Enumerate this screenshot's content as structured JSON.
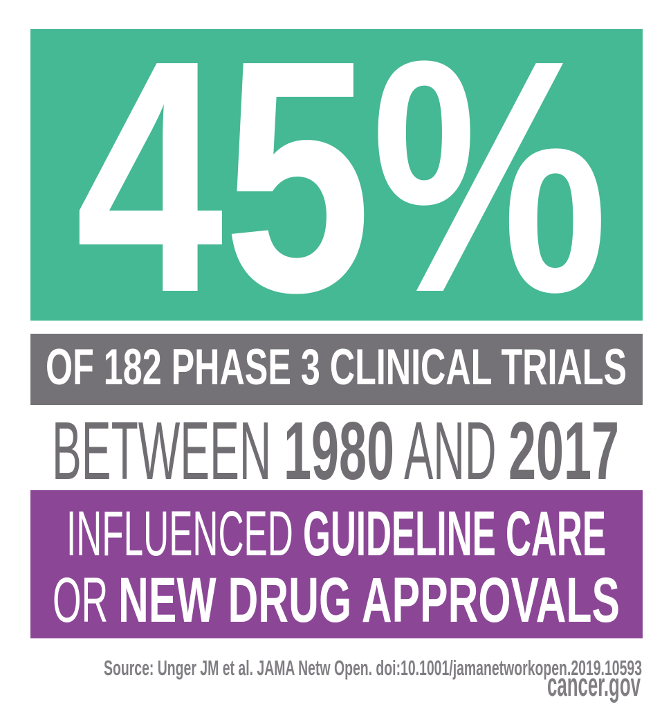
{
  "stat": {
    "value": "45%"
  },
  "qualifier": {
    "label": "OF 182 PHASE 3 CLINICAL TRIALS"
  },
  "period": {
    "light_prefix": "BETWEEN ",
    "start_year": "1980",
    "light_connector": " AND ",
    "end_year": "2017"
  },
  "finding": {
    "line1_light": "INFLUENCED ",
    "line1_bold": "GUIDELINE CARE",
    "line2_light": "OR ",
    "line2_bold": "NEW DRUG APPROVALS"
  },
  "footer": {
    "source": "Source: Unger JM et al. JAMA Netw Open. doi:10.1001/jamanetworkopen.2019.10593",
    "site": "cancer.gov"
  },
  "colors": {
    "teal": "#45B894",
    "bar_gray": "#747276",
    "purple": "#8B4796",
    "period_text_gray": "#706E72",
    "footer_text_gray": "#807E82",
    "text_white": "#FFFFFF"
  }
}
